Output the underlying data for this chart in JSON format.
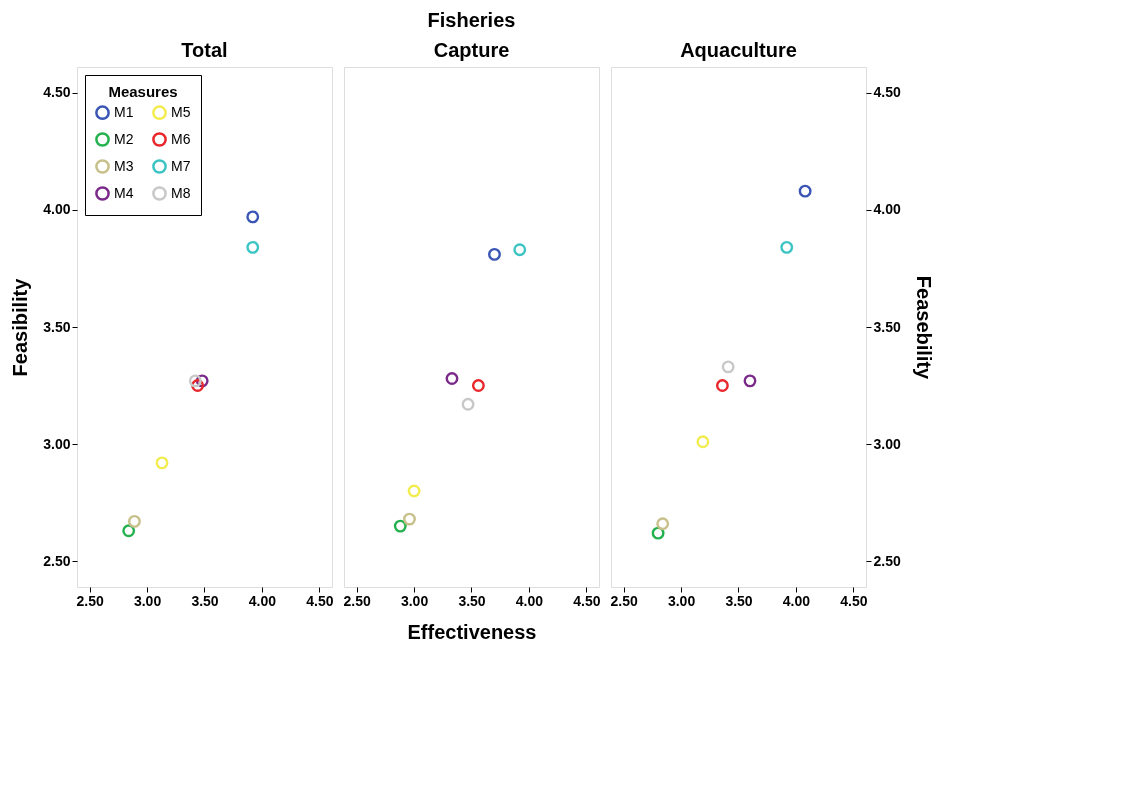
{
  "chart_data": [
    {
      "type": "scatter",
      "title": "Total",
      "ylabel": "Feasibility",
      "legend": "top left",
      "legend_title": "Measures",
      "marker": "circle",
      "grid": false,
      "xlim": [
        2.39,
        4.61
      ],
      "ylim": [
        2.39,
        4.61
      ],
      "xticks": [
        {
          "value": 2.5,
          "label": "2.50"
        },
        {
          "value": 3.0,
          "label": "3.00"
        },
        {
          "value": 3.5,
          "label": "3.50"
        },
        {
          "value": 4.0,
          "label": "4.00"
        },
        {
          "value": 4.5,
          "label": "4.50"
        }
      ],
      "yticks": [
        {
          "value": 2.5,
          "label": "2.50"
        },
        {
          "value": 3.0,
          "label": "3.00"
        },
        {
          "value": 3.5,
          "label": "3.50"
        },
        {
          "value": 4.0,
          "label": "4.00"
        },
        {
          "value": 4.5,
          "label": "4.50"
        }
      ],
      "series": [
        {
          "name": "M1",
          "color": "#3a55b4",
          "x": [
            3.92
          ],
          "values": [
            3.97
          ]
        },
        {
          "name": "M2",
          "color": "#22b14c",
          "x": [
            2.84
          ],
          "values": [
            2.63
          ]
        },
        {
          "name": "M3",
          "color": "#c8c08a",
          "x": [
            2.89
          ],
          "values": [
            2.67
          ]
        },
        {
          "name": "M4",
          "color": "#7b2a8a",
          "x": [
            3.48
          ],
          "values": [
            3.27
          ]
        },
        {
          "name": "M5",
          "color": "#f2ec4e",
          "x": [
            3.13
          ],
          "values": [
            2.92
          ]
        },
        {
          "name": "M6",
          "color": "#e8262b",
          "x": [
            3.44
          ],
          "values": [
            3.25
          ]
        },
        {
          "name": "M7",
          "color": "#3cc4c4",
          "x": [
            3.92
          ],
          "values": [
            3.84
          ]
        },
        {
          "name": "M8",
          "color": "#c8c8c8",
          "x": [
            3.42
          ],
          "values": [
            3.27
          ]
        }
      ]
    },
    {
      "type": "scatter",
      "title": "Capture",
      "xlabel": "Effectiveness",
      "annotations": [
        "Fisheries"
      ],
      "marker": "circle",
      "grid": false,
      "tick_labels": "x",
      "xlim": [
        2.39,
        4.61
      ],
      "ylim": [
        2.39,
        4.61
      ],
      "xticks": [
        {
          "value": 2.5,
          "label": "2.50"
        },
        {
          "value": 3.0,
          "label": "3.00"
        },
        {
          "value": 3.5,
          "label": "3.50"
        },
        {
          "value": 4.0,
          "label": "4.00"
        },
        {
          "value": 4.5,
          "label": "4.50"
        }
      ],
      "series": [
        {
          "color": "#3a55b4",
          "x": [
            3.7
          ],
          "values": [
            3.81
          ]
        },
        {
          "color": "#22b14c",
          "x": [
            2.88
          ],
          "values": [
            2.65
          ]
        },
        {
          "color": "#c8c08a",
          "x": [
            2.96
          ],
          "values": [
            2.68
          ]
        },
        {
          "color": "#7b2a8a",
          "x": [
            3.33
          ],
          "values": [
            3.28
          ]
        },
        {
          "color": "#f2ec4e",
          "x": [
            3.0
          ],
          "values": [
            2.8
          ]
        },
        {
          "color": "#e8262b",
          "x": [
            3.56
          ],
          "values": [
            3.25
          ]
        },
        {
          "color": "#3cc4c4",
          "x": [
            3.92
          ],
          "values": [
            3.83
          ]
        },
        {
          "color": "#c8c8c8",
          "x": [
            3.47
          ],
          "values": [
            3.17
          ]
        }
      ]
    },
    {
      "type": "scatter",
      "title": "Aquaculture",
      "y2label": "Feasebility",
      "marker": "circle",
      "grid": false,
      "xlim": [
        2.39,
        4.61
      ],
      "y2lim": [
        2.39,
        4.61
      ],
      "xticks": [
        {
          "value": 2.5,
          "label": "2.50"
        },
        {
          "value": 3.0,
          "label": "3.00"
        },
        {
          "value": 3.5,
          "label": "3.50"
        },
        {
          "value": 4.0,
          "label": "4.00"
        },
        {
          "value": 4.5,
          "label": "4.50"
        }
      ],
      "y2ticks": [
        {
          "value": 2.5,
          "label": "2.50"
        },
        {
          "value": 3.0,
          "label": "3.00"
        },
        {
          "value": 3.5,
          "label": "3.50"
        },
        {
          "value": 4.0,
          "label": "4.00"
        },
        {
          "value": 4.5,
          "label": "4.50"
        }
      ],
      "series": [
        {
          "color": "#3a55b4",
          "x": [
            4.08
          ],
          "values": [
            4.08
          ],
          "axis": "y2"
        },
        {
          "color": "#22b14c",
          "x": [
            2.8
          ],
          "values": [
            2.62
          ],
          "axis": "y2"
        },
        {
          "color": "#c8c08a",
          "x": [
            2.84
          ],
          "values": [
            2.66
          ],
          "axis": "y2"
        },
        {
          "color": "#7b2a8a",
          "x": [
            3.6
          ],
          "values": [
            3.27
          ],
          "axis": "y2"
        },
        {
          "color": "#f2ec4e",
          "x": [
            3.19
          ],
          "values": [
            3.01
          ],
          "axis": "y2"
        },
        {
          "color": "#e8262b",
          "x": [
            3.36
          ],
          "values": [
            3.25
          ],
          "axis": "y2"
        },
        {
          "color": "#3cc4c4",
          "x": [
            3.92
          ],
          "values": [
            3.84
          ],
          "axis": "y2"
        },
        {
          "color": "#c8c8c8",
          "x": [
            3.41
          ],
          "values": [
            3.33
          ],
          "axis": "y2"
        }
      ]
    }
  ]
}
